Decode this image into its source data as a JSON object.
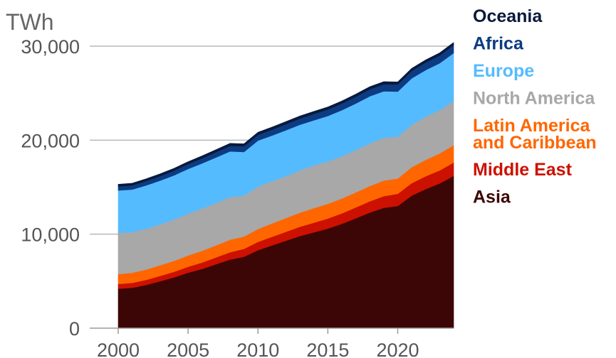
{
  "chart_data": {
    "type": "area",
    "stacked": true,
    "unit_label": "TWh",
    "title": "",
    "xlabel": "",
    "ylabel": "",
    "xlim": [
      2000,
      2024
    ],
    "ylim": [
      0,
      30000
    ],
    "xticks": [
      2000,
      2005,
      2010,
      2015,
      2020
    ],
    "yticks": [
      0,
      10000,
      20000,
      30000
    ],
    "xtick_labels": [
      "2000",
      "2005",
      "2010",
      "2015",
      "2020"
    ],
    "ytick_labels": [
      "0",
      "10,000",
      "20,000",
      "30,000"
    ],
    "grid": "horizontal",
    "legend_position": "right",
    "x": [
      2000,
      2001,
      2002,
      2003,
      2004,
      2005,
      2006,
      2007,
      2008,
      2009,
      2010,
      2011,
      2012,
      2013,
      2014,
      2015,
      2016,
      2017,
      2018,
      2019,
      2020,
      2021,
      2022,
      2023,
      2024
    ],
    "series": [
      {
        "name": "Asia",
        "color": "#3d0606",
        "values": [
          4200,
          4300,
          4600,
          5000,
          5400,
          5900,
          6300,
          6800,
          7300,
          7600,
          8300,
          8800,
          9300,
          9800,
          10200,
          10600,
          11100,
          11700,
          12300,
          12800,
          13000,
          14100,
          14800,
          15400,
          16200
        ]
      },
      {
        "name": "Middle East",
        "color": "#cc1100",
        "values": [
          500,
          520,
          540,
          570,
          600,
          640,
          680,
          730,
          780,
          830,
          880,
          920,
          950,
          990,
          1030,
          1070,
          1110,
          1150,
          1200,
          1250,
          1300,
          1330,
          1360,
          1390,
          1420
        ]
      },
      {
        "name": "Latin America and Caribbean",
        "color": "#ff6600",
        "values": [
          1050,
          1080,
          1100,
          1130,
          1160,
          1200,
          1250,
          1290,
          1330,
          1320,
          1380,
          1420,
          1460,
          1500,
          1540,
          1560,
          1580,
          1600,
          1620,
          1650,
          1620,
          1700,
          1750,
          1800,
          1850
        ]
      },
      {
        "name": "North America",
        "color": "#a8a8a8",
        "values": [
          4400,
          4300,
          4350,
          4350,
          4400,
          4450,
          4500,
          4500,
          4550,
          4350,
          4500,
          4500,
          4450,
          4500,
          4550,
          4500,
          4500,
          4500,
          4550,
          4550,
          4450,
          4500,
          4600,
          4600,
          4700
        ]
      },
      {
        "name": "Europe",
        "color": "#55bbff",
        "values": [
          4500,
          4550,
          4600,
          4650,
          4700,
          4750,
          4800,
          4850,
          4850,
          4650,
          4900,
          4850,
          4900,
          4850,
          4800,
          4850,
          4900,
          4950,
          5000,
          4950,
          4800,
          4950,
          4950,
          5000,
          5100
        ]
      },
      {
        "name": "Africa",
        "color": "#0c3b82",
        "values": [
          430,
          440,
          460,
          480,
          500,
          520,
          540,
          560,
          580,
          600,
          610,
          630,
          650,
          660,
          670,
          690,
          710,
          730,
          750,
          760,
          760,
          790,
          810,
          830,
          850
        ]
      },
      {
        "name": "Oceania",
        "color": "#081a3c",
        "values": [
          230,
          235,
          240,
          245,
          250,
          255,
          260,
          265,
          270,
          270,
          270,
          270,
          270,
          270,
          270,
          270,
          270,
          270,
          270,
          270,
          270,
          270,
          270,
          270,
          270
        ]
      }
    ]
  }
}
